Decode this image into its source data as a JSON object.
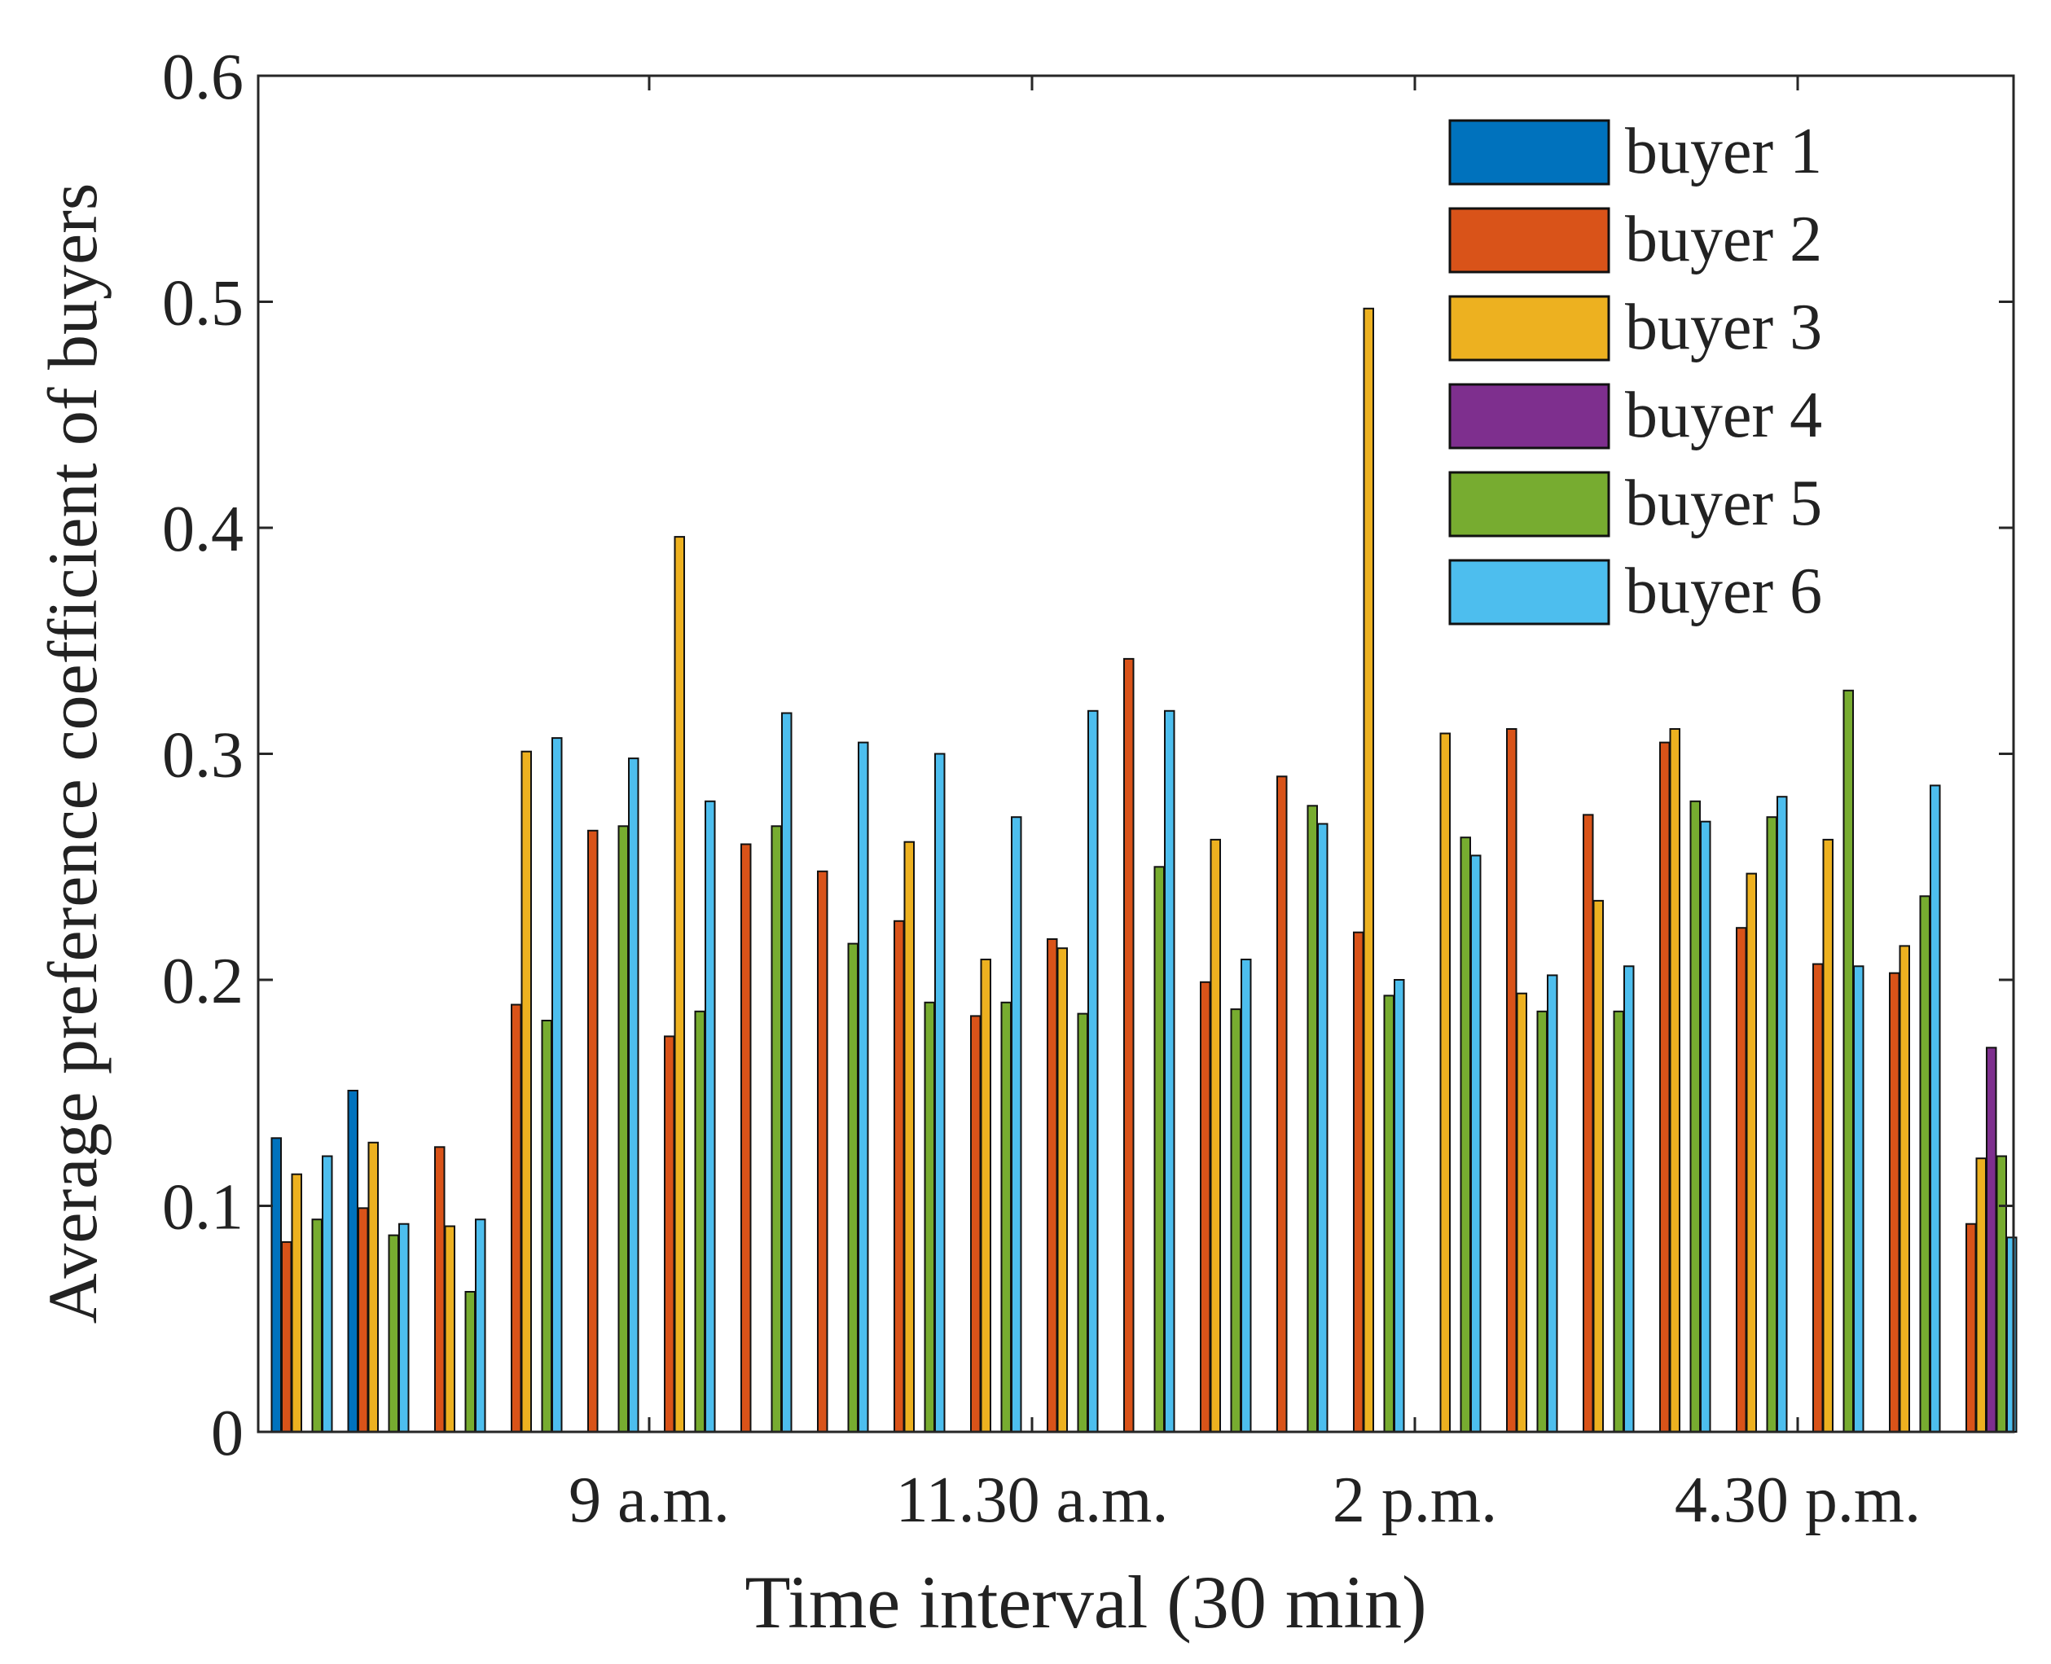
{
  "chart_data": {
    "type": "bar",
    "title": "",
    "xlabel": "Time interval (30 min)",
    "ylabel": "Average preference coefficient of buyers",
    "ylim": [
      0,
      0.6
    ],
    "yticks": [
      "0",
      "0.1",
      "0.2",
      "0.3",
      "0.4",
      "0.5",
      "0.6"
    ],
    "x_tick_labels": [
      {
        "after_group": 5,
        "label": "9 a.m."
      },
      {
        "after_group": 10,
        "label": "11.30 a.m."
      },
      {
        "after_group": 15,
        "label": "2 p.m."
      },
      {
        "after_group": 20,
        "label": "4.30 p.m."
      }
    ],
    "num_groups": 23,
    "legend_position": "top-right",
    "series": [
      {
        "name": "buyer 1",
        "color": "#0072BD",
        "values": [
          0.13,
          0.151,
          0,
          0,
          0,
          0,
          0,
          0,
          0,
          0,
          0,
          0,
          0,
          0,
          0,
          0,
          0,
          0,
          0,
          0,
          0,
          0,
          0
        ]
      },
      {
        "name": "buyer 2",
        "color": "#D95319",
        "values": [
          0.084,
          0.099,
          0.126,
          0.189,
          0.266,
          0.175,
          0.26,
          0.248,
          0.226,
          0.184,
          0.218,
          0.342,
          0.199,
          0.29,
          0.221,
          0,
          0.311,
          0.273,
          0.305,
          0.223,
          0.207,
          0.203,
          0.092
        ]
      },
      {
        "name": "buyer 3",
        "color": "#EDB120",
        "values": [
          0.114,
          0.128,
          0.091,
          0.301,
          0,
          0.396,
          0,
          0,
          0.261,
          0.209,
          0.214,
          0,
          0.262,
          0,
          0.497,
          0.309,
          0.194,
          0.235,
          0.311,
          0.247,
          0.262,
          0.215,
          0.121
        ]
      },
      {
        "name": "buyer 4",
        "color": "#7E2F8E",
        "values": [
          0,
          0,
          0,
          0,
          0,
          0,
          0,
          0,
          0,
          0,
          0,
          0,
          0,
          0,
          0,
          0,
          0,
          0,
          0,
          0,
          0,
          0,
          0.17
        ]
      },
      {
        "name": "buyer 5",
        "color": "#77AC30",
        "values": [
          0.094,
          0.087,
          0.062,
          0.182,
          0.268,
          0.186,
          0.268,
          0.216,
          0.19,
          0.19,
          0.185,
          0.25,
          0.187,
          0.277,
          0.193,
          0.263,
          0.186,
          0.186,
          0.279,
          0.272,
          0.328,
          0.237,
          0.122
        ]
      },
      {
        "name": "buyer 6",
        "color": "#4DBEEE",
        "values": [
          0.122,
          0.092,
          0.094,
          0.307,
          0.298,
          0.279,
          0.318,
          0.305,
          0.3,
          0.272,
          0.319,
          0.319,
          0.209,
          0.269,
          0.2,
          0.255,
          0.202,
          0.206,
          0.27,
          0.281,
          0.206,
          0.286,
          0.086
        ]
      }
    ]
  }
}
